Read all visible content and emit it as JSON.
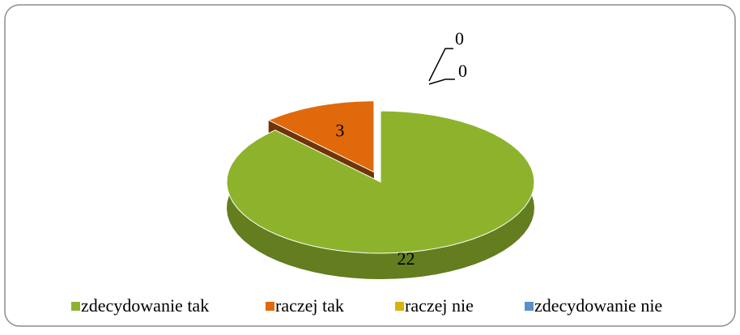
{
  "chart_data": {
    "type": "pie",
    "categories": [
      "zdecydowanie tak",
      "raczej tak",
      "raczej nie",
      "zdecydowanie nie"
    ],
    "values": [
      22,
      3,
      0,
      0
    ],
    "colors": [
      "#8db32d",
      "#e0690c",
      "#d6b40c",
      "#5b8fc9"
    ],
    "legend": "bottom"
  }
}
